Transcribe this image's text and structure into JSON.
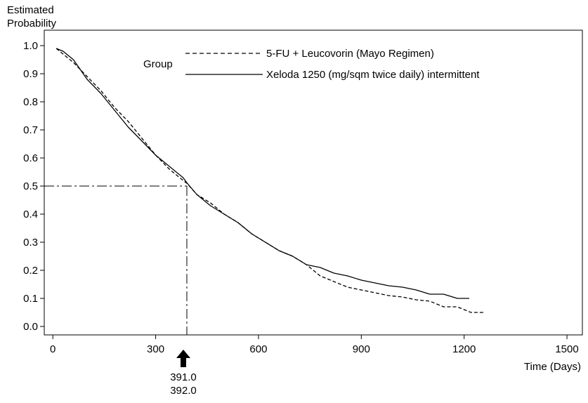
{
  "chart_data": {
    "type": "line",
    "title": "",
    "ylabel_line1": "Estimated",
    "ylabel_line2": "Probability",
    "xlabel": "Time (Days)",
    "xlim": [
      -25,
      1545
    ],
    "ylim": [
      -0.03,
      1.055
    ],
    "x_ticks": [
      0,
      300,
      600,
      900,
      1200,
      1500
    ],
    "x_tick_labels": [
      "0",
      "300",
      "600",
      "900",
      "1200",
      "1500"
    ],
    "y_ticks": [
      0.0,
      0.1,
      0.2,
      0.3,
      0.4,
      0.5,
      0.6,
      0.7,
      0.8,
      0.9,
      1.0
    ],
    "y_tick_labels": [
      "0.0",
      "0.1",
      "0.2",
      "0.3",
      "0.4",
      "0.5",
      "0.6",
      "0.7",
      "0.8",
      "0.9",
      "1.0"
    ],
    "grid": false,
    "legend": {
      "title": "Group",
      "placement": "top-center"
    },
    "series": [
      {
        "name": "5-FU + Leucovorin (Mayo Regimen)",
        "style": "dashed",
        "color": "#000000",
        "x": [
          10,
          30,
          60,
          100,
          140,
          180,
          220,
          260,
          300,
          340,
          380,
          391,
          420,
          460,
          500,
          540,
          580,
          620,
          660,
          700,
          740,
          780,
          820,
          860,
          900,
          940,
          980,
          1020,
          1060,
          1100,
          1140,
          1180,
          1220,
          1260
        ],
        "y": [
          0.99,
          0.97,
          0.94,
          0.89,
          0.84,
          0.78,
          0.73,
          0.67,
          0.61,
          0.56,
          0.52,
          0.51,
          0.47,
          0.44,
          0.4,
          0.37,
          0.33,
          0.3,
          0.27,
          0.25,
          0.22,
          0.18,
          0.16,
          0.14,
          0.13,
          0.12,
          0.11,
          0.105,
          0.095,
          0.09,
          0.07,
          0.07,
          0.05,
          0.05
        ]
      },
      {
        "name": "Xeloda 1250 (mg/sqm twice daily) intermittent",
        "style": "solid",
        "color": "#000000",
        "x": [
          10,
          30,
          60,
          100,
          140,
          180,
          220,
          260,
          300,
          340,
          380,
          392,
          420,
          460,
          500,
          540,
          580,
          620,
          660,
          700,
          740,
          780,
          820,
          860,
          900,
          940,
          980,
          1020,
          1060,
          1100,
          1140,
          1180,
          1215
        ],
        "y": [
          0.99,
          0.98,
          0.95,
          0.88,
          0.83,
          0.77,
          0.71,
          0.66,
          0.61,
          0.57,
          0.53,
          0.51,
          0.47,
          0.43,
          0.4,
          0.37,
          0.33,
          0.3,
          0.27,
          0.25,
          0.22,
          0.21,
          0.19,
          0.18,
          0.165,
          0.155,
          0.145,
          0.14,
          0.13,
          0.115,
          0.115,
          0.1,
          0.1
        ]
      }
    ],
    "median_reference": {
      "y": 0.5,
      "x": 391,
      "style": "dash-dot",
      "labels": [
        "391.0",
        "392.0"
      ]
    }
  }
}
